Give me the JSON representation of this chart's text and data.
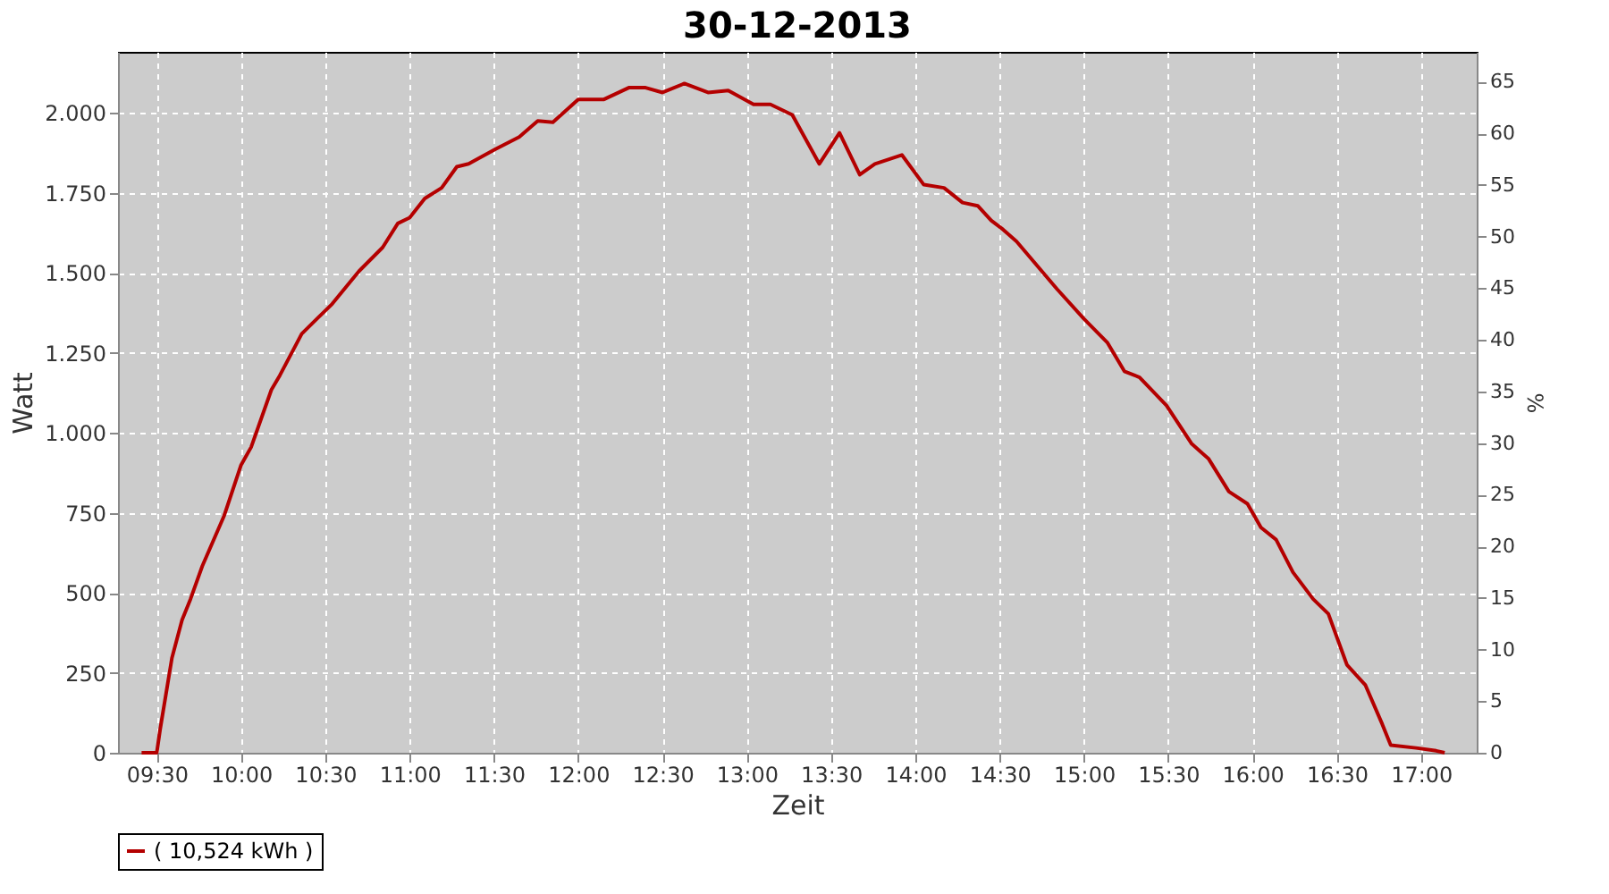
{
  "chart_data": {
    "type": "line",
    "title": "30-12-2013",
    "xlabel": "Zeit",
    "ylabel": "Watt",
    "y2label": "%",
    "x": [
      9.41,
      9.5,
      9.52,
      9.59,
      9.65,
      9.7,
      9.77,
      9.9,
      10.0,
      10.06,
      10.18,
      10.23,
      10.36,
      10.45,
      10.54,
      10.7,
      10.84,
      10.93,
      11.0,
      11.09,
      11.19,
      11.28,
      11.35,
      11.51,
      11.65,
      11.76,
      11.85,
      12.0,
      12.15,
      12.3,
      12.4,
      12.5,
      12.63,
      12.77,
      12.89,
      13.04,
      13.14,
      13.27,
      13.43,
      13.55,
      13.67,
      13.76,
      13.92,
      14.05,
      14.17,
      14.28,
      14.37,
      14.45,
      14.52,
      14.6,
      14.84,
      15.0,
      15.14,
      15.24,
      15.33,
      15.49,
      15.64,
      15.74,
      15.86,
      15.97,
      16.05,
      16.14,
      16.24,
      16.36,
      16.45,
      16.56,
      16.67,
      16.77,
      16.82,
      16.97,
      17.09,
      17.14
    ],
    "series": [
      {
        "name": "( 10,524 kWh )",
        "color": "#b40000",
        "values": [
          0,
          0,
          73,
          296,
          415,
          480,
          583,
          741,
          899,
          955,
          1134,
          1179,
          1309,
          1356,
          1402,
          1505,
          1579,
          1654,
          1672,
          1732,
          1765,
          1831,
          1840,
          1886,
          1924,
          1974,
          1970,
          2041,
          2041,
          2078,
          2078,
          2063,
          2091,
          2063,
          2069,
          2026,
          2026,
          1993,
          1840,
          1937,
          1806,
          1840,
          1868,
          1775,
          1765,
          1719,
          1709,
          1663,
          1635,
          1598,
          1449,
          1356,
          1281,
          1192,
          1173,
          1085,
          965,
          918,
          816,
          778,
          704,
          666,
          564,
          480,
          434,
          275,
          211,
          89,
          24,
          15,
          6,
          0
        ]
      }
    ],
    "xlim": [
      9.27,
      17.33
    ],
    "xticks": [
      {
        "value": 9.5,
        "label": "09:30"
      },
      {
        "value": 10,
        "label": "10:00"
      },
      {
        "value": 10.5,
        "label": "10:30"
      },
      {
        "value": 11,
        "label": "11:00"
      },
      {
        "value": 11.5,
        "label": "11:30"
      },
      {
        "value": 12,
        "label": "12:00"
      },
      {
        "value": 12.5,
        "label": "12:30"
      },
      {
        "value": 13,
        "label": "13:00"
      },
      {
        "value": 13.5,
        "label": "13:30"
      },
      {
        "value": 14,
        "label": "14:00"
      },
      {
        "value": 14.5,
        "label": "14:30"
      },
      {
        "value": 15,
        "label": "15:00"
      },
      {
        "value": 15.5,
        "label": "15:30"
      },
      {
        "value": 16,
        "label": "16:00"
      },
      {
        "value": 16.5,
        "label": "16:30"
      },
      {
        "value": 17,
        "label": "17:00"
      }
    ],
    "ylim": [
      0,
      2190
    ],
    "yticks": [
      0,
      250,
      500,
      750,
      {
        "value": 1000,
        "label": "1.000"
      },
      {
        "value": 1250,
        "label": "1.250"
      },
      {
        "value": 1500,
        "label": "1.500"
      },
      {
        "value": 1750,
        "label": "1.750"
      },
      {
        "value": 2000,
        "label": "2.000"
      }
    ],
    "y2lim": [
      0,
      67.9
    ],
    "y2ticks": [
      0,
      5,
      10,
      15,
      20,
      25,
      30,
      35,
      40,
      45,
      50,
      55,
      60,
      65
    ],
    "grid": true,
    "legend": "bottom",
    "marker": "none",
    "line_style": "solid"
  }
}
